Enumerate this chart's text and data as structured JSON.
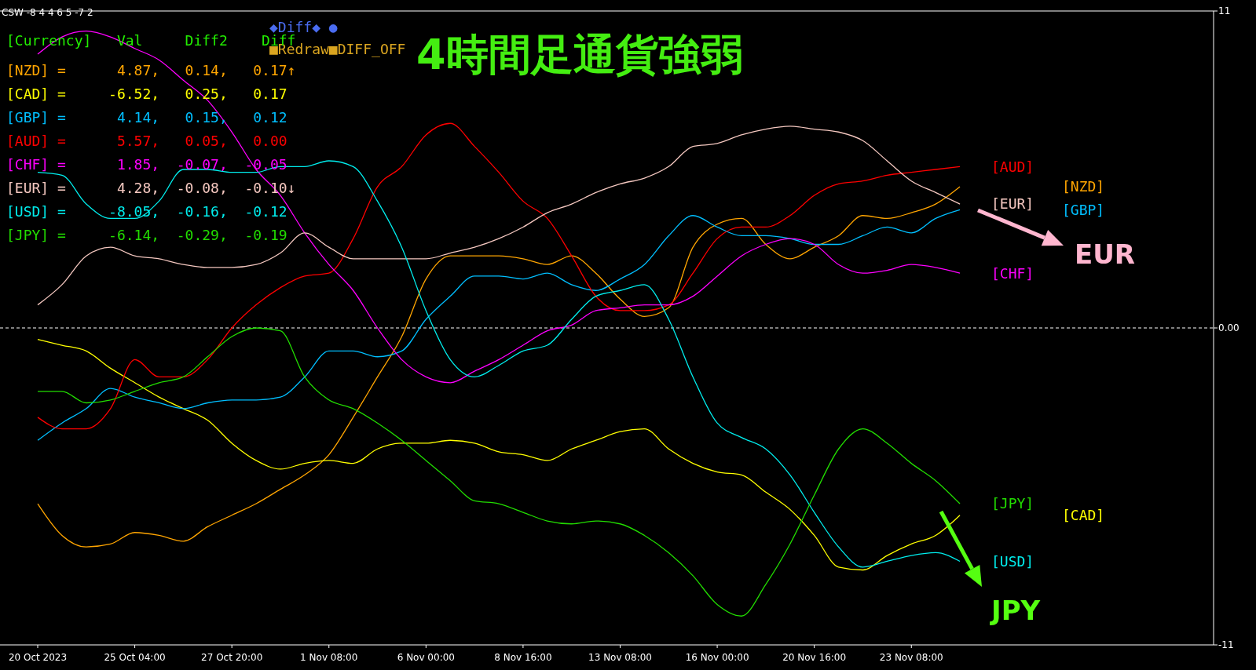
{
  "chart_data": {
    "type": "line",
    "title": "4時間足通貨強弱",
    "categories": [
      "20 Oct 2023",
      null,
      null,
      null,
      "25 Oct 04:00",
      null,
      null,
      null,
      "27 Oct 20:00",
      null,
      null,
      null,
      "1 Nov 08:00",
      null,
      null,
      null,
      "6 Nov 00:00",
      null,
      null,
      null,
      "8 Nov 16:00",
      null,
      null,
      null,
      "13 Nov 08:00",
      null,
      null,
      null,
      "16 Nov 00:00",
      null,
      null,
      null,
      "20 Nov 16:00",
      null,
      null,
      null,
      "23 Nov 08:00",
      null,
      null,
      null,
      null,
      null,
      null,
      null,
      null,
      null,
      null,
      null,
      null
    ],
    "series": [
      {
        "name": "[NZD]",
        "color": "#ffa500",
        "values": [
          -6.1,
          -7.2,
          -7.6,
          -7.5,
          -7.1,
          -7.2,
          -7.4,
          -6.9,
          -6.5,
          -6.1,
          -5.6,
          -5.1,
          -4.4,
          -3.1,
          -1.7,
          -0.3,
          1.7,
          2.5,
          2.5,
          2.5,
          2.4,
          2.2,
          2.5,
          1.9,
          1.0,
          0.4,
          0.7,
          2.8,
          3.6,
          3.8,
          2.9,
          2.4,
          2.8,
          3.2,
          3.9,
          3.8,
          4.0,
          4.3,
          4.9,
          null,
          null,
          null,
          null,
          null,
          null,
          null,
          null,
          null,
          null
        ]
      },
      {
        "name": "[CAD]",
        "color": "#ffff00",
        "values": [
          -0.4,
          -0.6,
          -0.8,
          -1.4,
          -1.9,
          -2.4,
          -2.8,
          -3.2,
          -4.0,
          -4.6,
          -4.9,
          -4.7,
          -4.6,
          -4.7,
          -4.2,
          -4.0,
          -4.0,
          -3.9,
          -4.0,
          -4.3,
          -4.4,
          -4.6,
          -4.2,
          -3.9,
          -3.6,
          -3.5,
          -4.2,
          -4.7,
          -5.0,
          -5.1,
          -5.7,
          -6.3,
          -7.2,
          -8.3,
          -8.4,
          -7.9,
          -7.5,
          -7.2,
          -6.5,
          null,
          null,
          null,
          null,
          null,
          null,
          null,
          null,
          null,
          null
        ]
      },
      {
        "name": "[GBP]",
        "color": "#00bfff",
        "values": [
          -3.9,
          -3.3,
          -2.8,
          -2.1,
          -2.4,
          -2.6,
          -2.8,
          -2.6,
          -2.5,
          -2.5,
          -2.4,
          -1.7,
          -0.8,
          -0.8,
          -1.0,
          -0.8,
          0.3,
          1.1,
          1.8,
          1.8,
          1.7,
          1.9,
          1.5,
          1.3,
          1.7,
          2.2,
          3.2,
          3.9,
          3.5,
          3.2,
          3.2,
          3.1,
          2.9,
          2.9,
          3.2,
          3.5,
          3.3,
          3.8,
          4.1,
          null,
          null,
          null,
          null,
          null,
          null,
          null,
          null,
          null,
          null
        ]
      },
      {
        "name": "[AUD]",
        "color": "#ff0000",
        "values": [
          -3.1,
          -3.5,
          -3.5,
          -2.8,
          -1.1,
          -1.7,
          -1.7,
          -1.1,
          0.0,
          0.8,
          1.4,
          1.8,
          1.9,
          3.1,
          4.9,
          5.6,
          6.7,
          7.1,
          6.3,
          5.4,
          4.4,
          3.8,
          2.5,
          1.1,
          0.6,
          0.6,
          0.8,
          1.9,
          3.1,
          3.5,
          3.5,
          3.9,
          4.6,
          5.0,
          5.1,
          5.3,
          5.4,
          5.5,
          5.6,
          null,
          null,
          null,
          null,
          null,
          null,
          null,
          null,
          null,
          null
        ]
      },
      {
        "name": "[CHF]",
        "color": "#ff00ff",
        "values": [
          9.5,
          10.1,
          10.3,
          10.1,
          9.7,
          9.3,
          8.6,
          7.9,
          6.8,
          5.5,
          4.6,
          3.3,
          2.2,
          1.3,
          0.0,
          -1.1,
          -1.7,
          -1.9,
          -1.5,
          -1.1,
          -0.6,
          -0.1,
          0.1,
          0.6,
          0.7,
          0.8,
          0.8,
          1.1,
          1.8,
          2.5,
          2.9,
          3.1,
          2.9,
          2.2,
          1.9,
          2.0,
          2.2,
          2.1,
          1.9,
          null,
          null,
          null,
          null,
          null,
          null,
          null,
          null,
          null,
          null
        ]
      },
      {
        "name": "[EUR]",
        "color": "#f5c8c0",
        "values": [
          0.8,
          1.5,
          2.5,
          2.8,
          2.5,
          2.4,
          2.2,
          2.1,
          2.1,
          2.2,
          2.6,
          3.3,
          2.8,
          2.4,
          2.4,
          2.4,
          2.4,
          2.6,
          2.8,
          3.1,
          3.5,
          4.0,
          4.3,
          4.7,
          5.0,
          5.2,
          5.6,
          6.3,
          6.4,
          6.7,
          6.9,
          7.0,
          6.9,
          6.8,
          6.5,
          5.8,
          5.1,
          4.7,
          4.3,
          null,
          null,
          null,
          null,
          null,
          null,
          null,
          null,
          null,
          null
        ]
      },
      {
        "name": "[USD]",
        "color": "#00eeee",
        "values": [
          5.4,
          5.3,
          4.3,
          3.8,
          3.8,
          4.4,
          5.5,
          5.5,
          5.4,
          5.4,
          5.6,
          5.6,
          5.8,
          5.6,
          4.4,
          2.8,
          0.6,
          -1.1,
          -1.7,
          -1.3,
          -0.8,
          -0.6,
          0.3,
          1.1,
          1.3,
          1.5,
          0.3,
          -1.7,
          -3.3,
          -3.8,
          -4.2,
          -5.1,
          -6.4,
          -7.6,
          -8.3,
          -8.1,
          -7.9,
          -7.8,
          -8.1,
          null,
          null,
          null,
          null,
          null,
          null,
          null,
          null,
          null,
          null
        ]
      },
      {
        "name": "[JPY]",
        "color": "#22dd00",
        "values": [
          -2.2,
          -2.2,
          -2.6,
          -2.5,
          -2.2,
          -1.9,
          -1.7,
          -1.0,
          -0.3,
          0.0,
          -0.1,
          -1.7,
          -2.5,
          -2.8,
          -3.3,
          -3.9,
          -4.6,
          -5.3,
          -6.0,
          -6.1,
          -6.4,
          -6.7,
          -6.8,
          -6.7,
          -6.8,
          -7.2,
          -7.8,
          -8.6,
          -9.6,
          -10.0,
          -8.9,
          -7.5,
          -5.8,
          -4.2,
          -3.5,
          -4.0,
          -4.7,
          -5.3,
          -6.1,
          null,
          null,
          null,
          null,
          null,
          null,
          null,
          null,
          null,
          null
        ]
      }
    ],
    "ylim": [
      -11,
      11
    ],
    "yticks": [
      11,
      {
        "value": 0,
        "label": "0.00"
      },
      -11
    ],
    "ref_lines": [
      {
        "axis": "y",
        "value": 0,
        "line_style": "dashed",
        "color": "#ffffff"
      }
    ],
    "annotations": [
      "CSW -8 4 4 6 5 -7 2",
      "◆Diff◆ ●",
      "■Redraw■DIFF_OFF",
      "[Currency]   Val     Diff2    Diff",
      "[NZD] =      4.87,   0.14,   0.17↑",
      "[CAD] =     -6.52,   0.25,   0.17",
      "[GBP] =      4.14,   0.15,   0.12",
      "[AUD] =      5.57,   0.05,   0.00",
      "[CHF] =      1.85,  -0.07,  -0.05",
      "[EUR] =      4.28,  -0.08,  -0.10↓",
      "[USD] =     -8.05,  -0.16,  -0.12",
      "[JPY] =     -6.14,  -0.29,  -0.19",
      "EUR",
      "JPY"
    ]
  }
}
